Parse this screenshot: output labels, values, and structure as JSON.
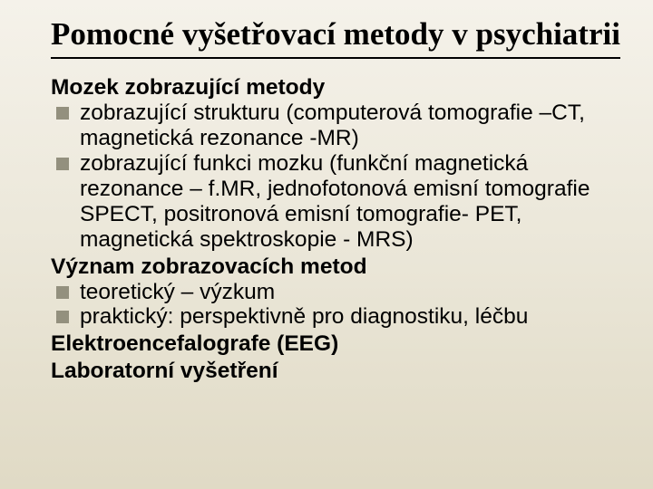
{
  "colors": {
    "text": "#000000",
    "bullet_marker": "#93907e",
    "bg_gradient_top": "#f5f2ea",
    "bg_gradient_mid": "#ebe7d9",
    "bg_gradient_bottom": "#e0dac5",
    "title_underline": "#000000"
  },
  "typography": {
    "title_font": "Times New Roman",
    "title_size_pt": 35,
    "title_weight": "bold",
    "body_font": "Arial",
    "body_size_pt": 24.5,
    "heading_weight": "bold"
  },
  "title": "Pomocné vyšetřovací metody v psychiatrii",
  "sections": [
    {
      "heading": "Mozek zobrazující metody",
      "bullets": [
        "zobrazující strukturu (computerová tomografie –CT, magnetická rezonance -MR)",
        "zobrazující funkci mozku (funkční magnetická rezonance – f.MR, jednofotonová emisní tomografie SPECT, positronová emisní tomografie- PET, magnetická spektroskopie - MRS)"
      ]
    },
    {
      "heading": "Význam zobrazovacích metod",
      "bullets": [
        "teoretický – výzkum",
        "praktický: perspektivně pro diagnostiku, léčbu"
      ]
    },
    {
      "heading": "Elektroencefalografe (EEG)",
      "bullets": []
    },
    {
      "heading": "Laboratorní vyšetření",
      "bullets": []
    }
  ]
}
